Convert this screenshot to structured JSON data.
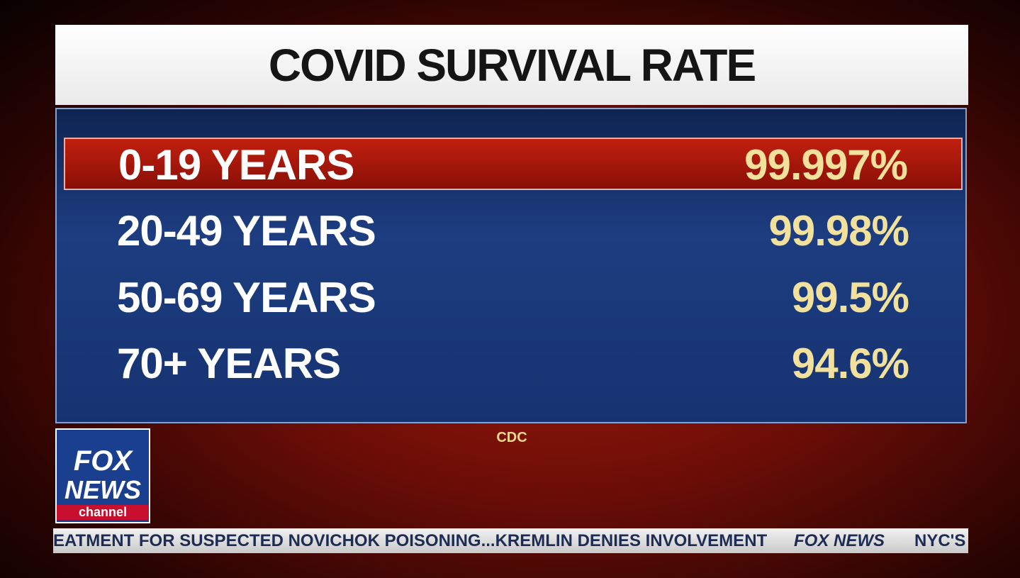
{
  "header": {
    "title": "COVID SURVIVAL RATE"
  },
  "table": {
    "rows": [
      [
        "0-19 YEARS",
        "99.997%"
      ],
      [
        "20-49 YEARS",
        "99.98%"
      ],
      [
        "50-69 YEARS",
        "99.5%"
      ],
      [
        "70+ YEARS",
        "94.6%"
      ]
    ]
  },
  "source": "CDC",
  "logo": {
    "line1": "FOX",
    "line2": "NEWS",
    "line3": "channel"
  },
  "ticker": {
    "text": "EATMENT FOR SUSPECTED NOVICHOK POISONING...KREMLIN DENIES INVOLVEMENT",
    "brand": "FOX NEWS",
    "next": "NYC'S"
  }
}
